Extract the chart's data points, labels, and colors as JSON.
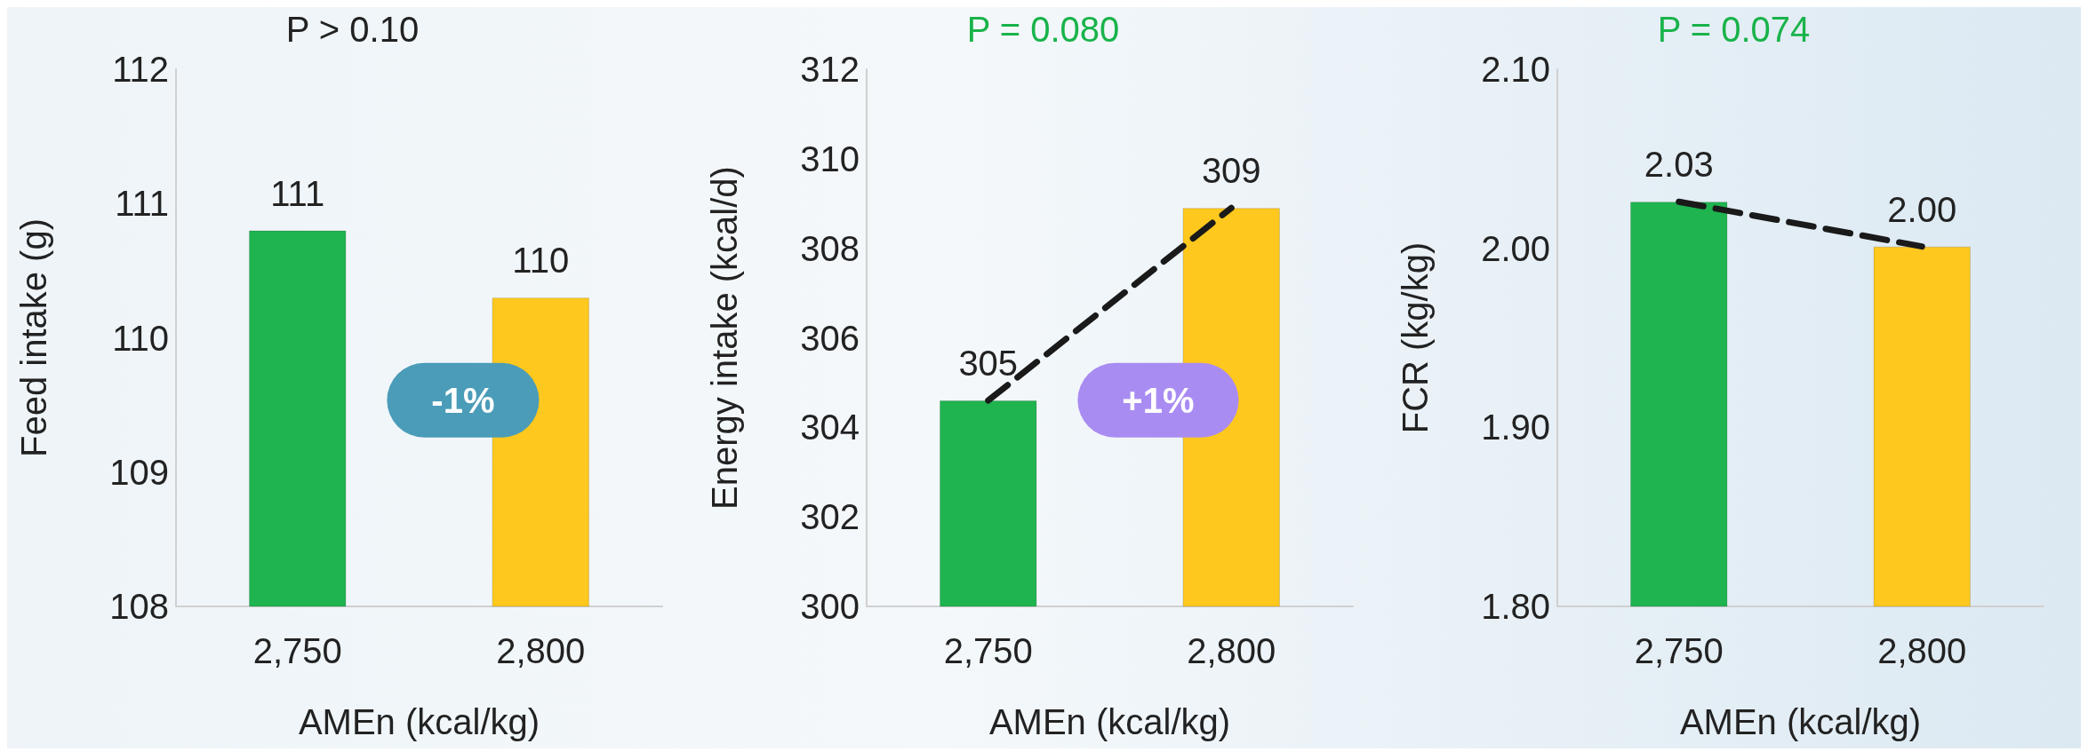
{
  "chart_data": [
    {
      "type": "bar",
      "title": "P > 0.10",
      "xlabel": "AMEn (kcal/kg)",
      "ylabel": "Feed intake (g)",
      "categories": [
        "2,750",
        "2,800"
      ],
      "ylim": [
        108,
        112
      ],
      "yticks": [
        108,
        109,
        110,
        111,
        112
      ],
      "grid": false,
      "annotations": [
        "-1%"
      ],
      "series": [
        {
          "values": [
            110.8,
            110.3
          ],
          "colors": [
            "#1fb44f",
            "#ffc81e"
          ],
          "value_labels": [
            "111",
            "110"
          ]
        }
      ]
    },
    {
      "type": "bar",
      "title": "P = 0.080",
      "xlabel": "AMEn (kcal/kg)",
      "ylabel": "Energy intake (kcal/d)",
      "categories": [
        "2,750",
        "2,800"
      ],
      "ylim": [
        300,
        312
      ],
      "yticks": [
        300,
        302,
        304,
        306,
        308,
        310,
        312
      ],
      "grid": false,
      "annotations": [
        "+1%"
      ],
      "series": [
        {
          "values": [
            304.6,
            308.9
          ],
          "colors": [
            "#1fb44f",
            "#ffc81e"
          ],
          "value_labels": [
            "305",
            "309"
          ]
        },
        {
          "type": "line",
          "values": [
            304.6,
            308.9
          ],
          "color": "#1a1a1a",
          "line_style": "dashed",
          "marker": "none"
        }
      ]
    },
    {
      "type": "bar",
      "title": "P = 0.074",
      "xlabel": "AMEn (kcal/kg)",
      "ylabel": "FCR (kg/kg)",
      "categories": [
        "2,750",
        "2,800"
      ],
      "ylim": [
        1.8,
        2.1
      ],
      "yticks": [
        {
          "value": 1.8,
          "label": "1.80"
        },
        {
          "value": 1.9,
          "label": "1.90"
        },
        {
          "value": 2.0,
          "label": "2.00"
        },
        {
          "value": 2.1,
          "label": "2.10"
        }
      ],
      "grid": false,
      "series": [
        {
          "values": [
            2.026,
            2.001
          ],
          "colors": [
            "#1fb44f",
            "#ffc81e"
          ],
          "value_labels": [
            "2.03",
            "2.00"
          ]
        },
        {
          "type": "line",
          "values": [
            2.026,
            2.001
          ],
          "color": "#1a1a1a",
          "line_style": "dashed",
          "marker": "none"
        }
      ]
    }
  ]
}
